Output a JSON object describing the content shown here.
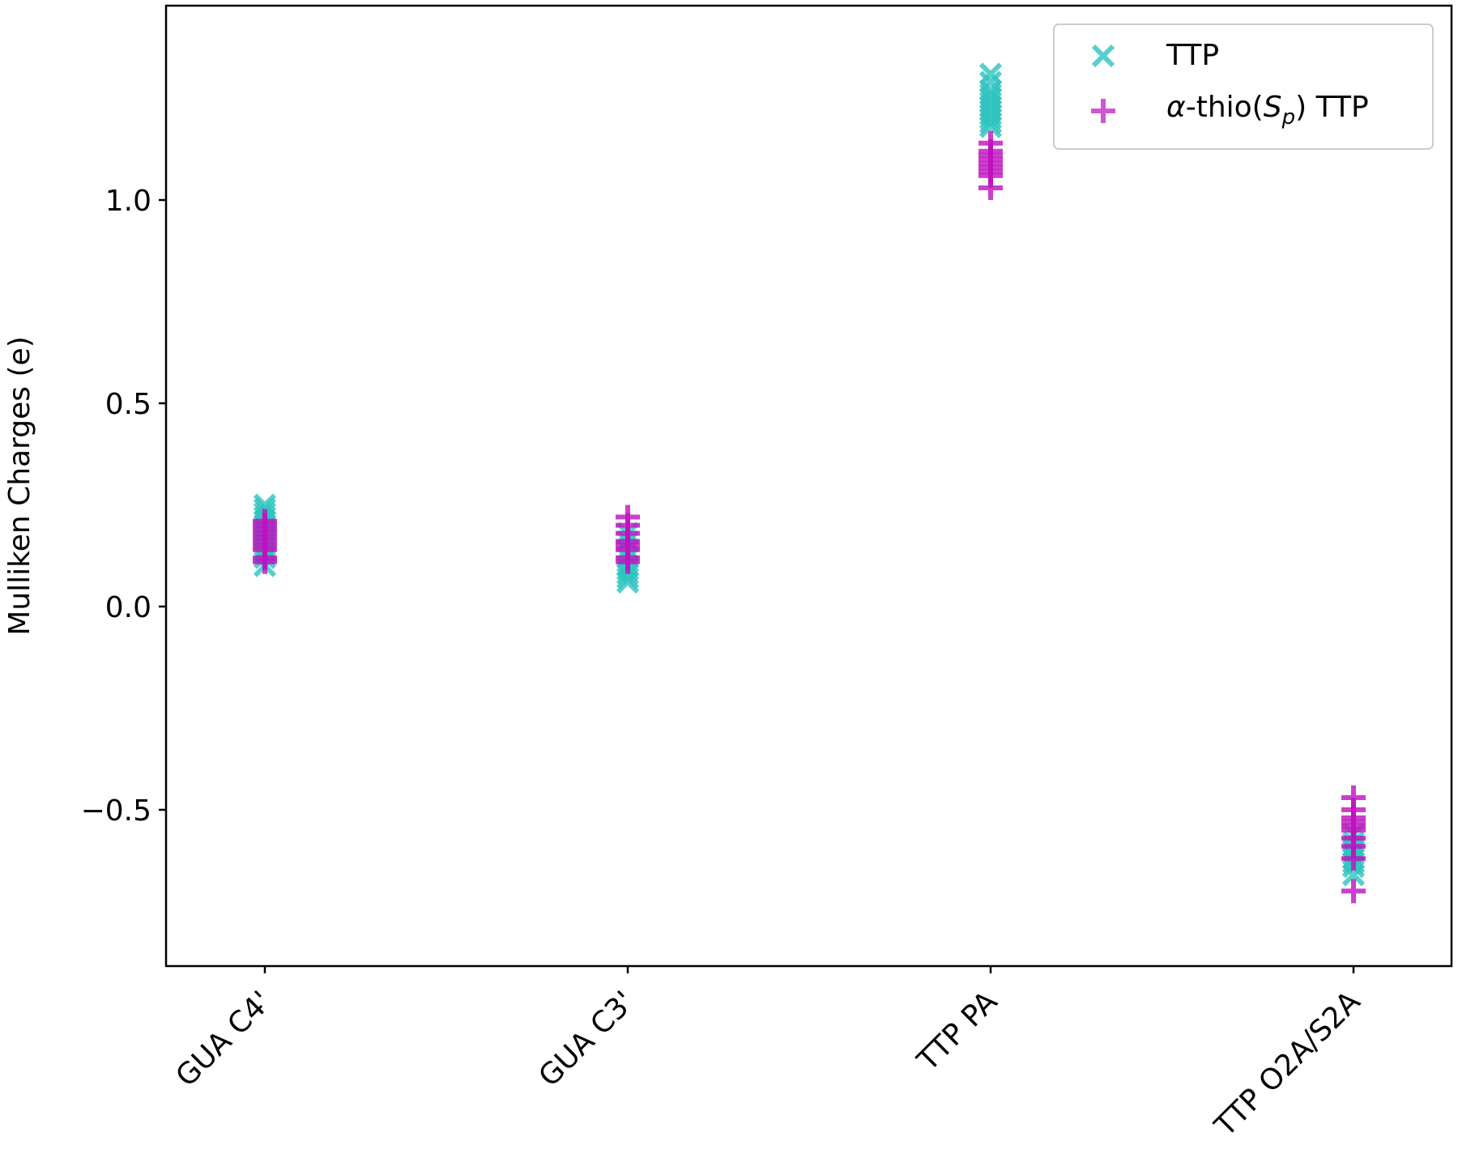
{
  "chart_data": {
    "type": "scatter",
    "xlabel": "",
    "ylabel": "Mulliken Charges (e)",
    "categories": [
      "GUA C4'",
      "GUA C3'",
      "TTP PA",
      "TTP O2A/S2A"
    ],
    "yticks": [
      -0.5,
      0.0,
      0.5,
      1.0
    ],
    "ytick_labels": [
      "−0.5",
      "0.0",
      "0.5",
      "1.0"
    ],
    "ylim": [
      -0.88,
      1.49
    ],
    "grid": false,
    "legend_position": "top-right",
    "series": [
      {
        "name": "TTP",
        "marker": "x",
        "color": "#2ec4c0",
        "points": [
          [
            0,
            0.25
          ],
          [
            0,
            0.24
          ],
          [
            0,
            0.23
          ],
          [
            0,
            0.22
          ],
          [
            0,
            0.21
          ],
          [
            0,
            0.2
          ],
          [
            0,
            0.19
          ],
          [
            0,
            0.18
          ],
          [
            0,
            0.17
          ],
          [
            0,
            0.16
          ],
          [
            0,
            0.15
          ],
          [
            0,
            0.14
          ],
          [
            0,
            0.13
          ],
          [
            0,
            0.12
          ],
          [
            0,
            0.1
          ],
          [
            1,
            0.18
          ],
          [
            1,
            0.16
          ],
          [
            1,
            0.14
          ],
          [
            1,
            0.12
          ],
          [
            1,
            0.1
          ],
          [
            1,
            0.09
          ],
          [
            1,
            0.08
          ],
          [
            1,
            0.07
          ],
          [
            1,
            0.06
          ],
          [
            2,
            1.31
          ],
          [
            2,
            1.29
          ],
          [
            2,
            1.27
          ],
          [
            2,
            1.26
          ],
          [
            2,
            1.25
          ],
          [
            2,
            1.24
          ],
          [
            2,
            1.23
          ],
          [
            2,
            1.22
          ],
          [
            2,
            1.21
          ],
          [
            2,
            1.2
          ],
          [
            2,
            1.19
          ],
          [
            2,
            1.18
          ],
          [
            3,
            -0.56
          ],
          [
            3,
            -0.58
          ],
          [
            3,
            -0.59
          ],
          [
            3,
            -0.6
          ],
          [
            3,
            -0.61
          ],
          [
            3,
            -0.62
          ],
          [
            3,
            -0.63
          ],
          [
            3,
            -0.64
          ],
          [
            3,
            -0.66
          ]
        ]
      },
      {
        "name": "α-thio(Sp) TTP",
        "name_parts": {
          "alpha": "α",
          "mid": "-thio(",
          "S": "S",
          "sub": "p",
          "end": ") TTP"
        },
        "marker": "+",
        "color": "#c010c0",
        "points": [
          [
            0,
            0.21
          ],
          [
            0,
            0.2
          ],
          [
            0,
            0.19
          ],
          [
            0,
            0.18
          ],
          [
            0,
            0.17
          ],
          [
            0,
            0.16
          ],
          [
            0,
            0.15
          ],
          [
            0,
            0.14
          ],
          [
            0,
            0.12
          ],
          [
            0,
            0.11
          ],
          [
            1,
            0.22
          ],
          [
            1,
            0.2
          ],
          [
            1,
            0.18
          ],
          [
            1,
            0.16
          ],
          [
            1,
            0.15
          ],
          [
            1,
            0.14
          ],
          [
            1,
            0.12
          ],
          [
            1,
            0.11
          ],
          [
            2,
            1.14
          ],
          [
            2,
            1.12
          ],
          [
            2,
            1.11
          ],
          [
            2,
            1.1
          ],
          [
            2,
            1.09
          ],
          [
            2,
            1.08
          ],
          [
            2,
            1.07
          ],
          [
            2,
            1.06
          ],
          [
            2,
            1.03
          ],
          [
            3,
            -0.47
          ],
          [
            3,
            -0.5
          ],
          [
            3,
            -0.52
          ],
          [
            3,
            -0.53
          ],
          [
            3,
            -0.54
          ],
          [
            3,
            -0.55
          ],
          [
            3,
            -0.57
          ],
          [
            3,
            -0.59
          ],
          [
            3,
            -0.62
          ],
          [
            3,
            -0.7
          ]
        ]
      }
    ]
  }
}
